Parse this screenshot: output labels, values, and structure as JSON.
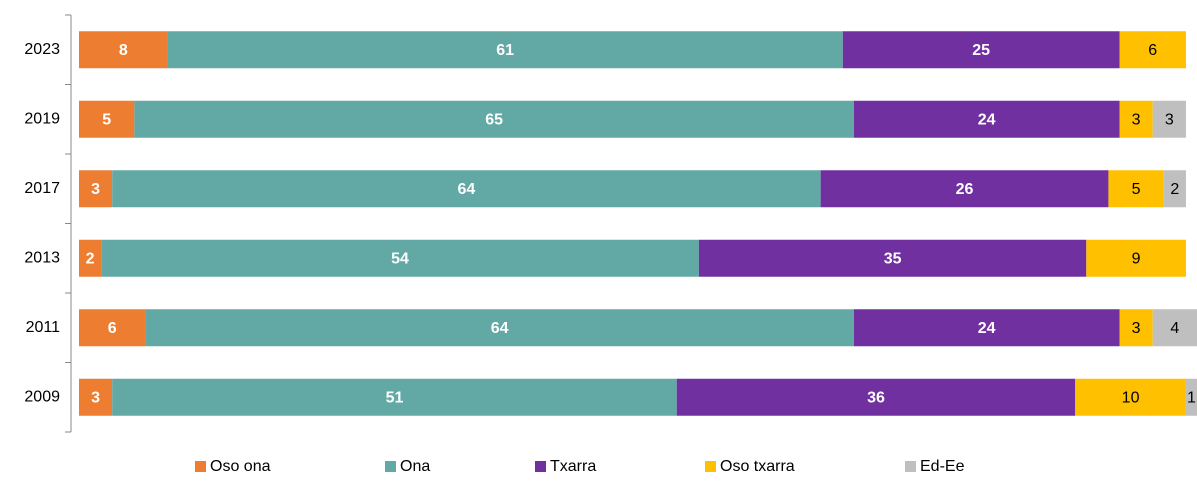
{
  "chart_data": {
    "type": "stacked-bar-horizontal",
    "categories": [
      "2023",
      "2019",
      "2017",
      "2013",
      "2011",
      "2009"
    ],
    "series": [
      {
        "name": "Oso ona",
        "color": "#ed7d31",
        "label_color": "#ffffff",
        "values": [
          8,
          5,
          3,
          2,
          6,
          3
        ]
      },
      {
        "name": "Ona",
        "color": "#62a8a4",
        "label_color": "#ffffff",
        "values": [
          61,
          65,
          64,
          54,
          64,
          51
        ]
      },
      {
        "name": "Txarra",
        "color": "#7030a0",
        "label_color": "#ffffff",
        "values": [
          25,
          24,
          26,
          35,
          24,
          36
        ]
      },
      {
        "name": "Oso txarra",
        "color": "#ffc000",
        "label_color": "#000000",
        "values": [
          6,
          3,
          5,
          9,
          3,
          10
        ]
      },
      {
        "name": "Ed-Ee",
        "color": "#bfbfbf",
        "label_color": "#000000",
        "values": [
          null,
          3,
          2,
          null,
          4,
          1
        ]
      }
    ],
    "legend": "bottom"
  }
}
